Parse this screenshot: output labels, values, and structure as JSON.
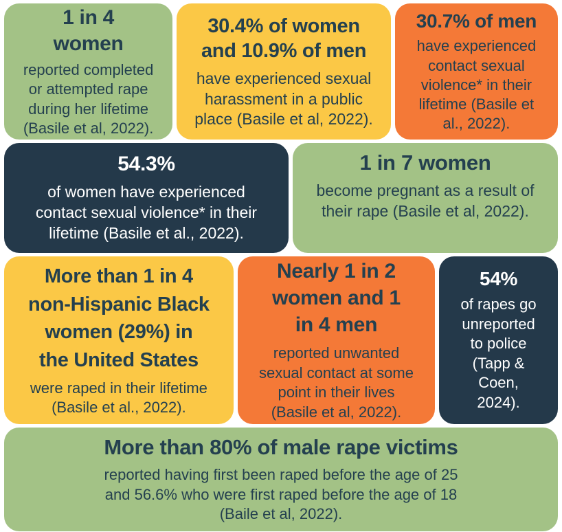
{
  "palette": {
    "green": "#A3C286",
    "yellow": "#FBC846",
    "orange": "#F47937",
    "navy": "#24394A",
    "text_dark": "#24404F",
    "text_light": "#FFFFFF",
    "background": "#FFFFFF"
  },
  "infographic": {
    "tiles": [
      {
        "color": "green",
        "heading": "1 in 4\nwomen",
        "body": "reported completed\nor attempted rape\nduring her lifetime\n(Basile et al, 2022)."
      },
      {
        "color": "yellow",
        "heading": "30.4% of women\nand 10.9% of men",
        "body": "have experienced sexual\nharassment in a public\nplace (Basile et al, 2022)."
      },
      {
        "color": "orange",
        "heading": "30.7% of men",
        "body": "have experienced\ncontact sexual\nviolence* in their\nlifetime (Basile et\nal., 2022)."
      },
      {
        "color": "navy",
        "heading": "54.3%",
        "body": "of women have experienced\ncontact sexual violence* in their\nlifetime (Basile et al., 2022)."
      },
      {
        "color": "green",
        "heading": "1 in 7 women",
        "body": "become pregnant as a result of\ntheir rape (Basile et al, 2022)."
      },
      {
        "color": "yellow",
        "heading": "More than 1 in 4\nnon-Hispanic Black\nwomen (29%) in\nthe United States",
        "body": "were raped in their lifetime\n(Basile et al., 2022)."
      },
      {
        "color": "orange",
        "heading": "Nearly 1 in 2\nwomen and 1\nin 4 men",
        "body": "reported unwanted\nsexual contact at some\npoint in their lives\n(Basile et al, 2022)."
      },
      {
        "color": "navy",
        "heading": "54%",
        "body": "of rapes go\nunreported\nto police\n(Tapp &\nCoen,\n2024)."
      },
      {
        "color": "green",
        "heading": "More than 80% of male rape victims",
        "body": "reported having first been raped before the age of 25\nand 56.6% who were first raped before the age of 18\n(Baile et al, 2022)."
      }
    ]
  }
}
